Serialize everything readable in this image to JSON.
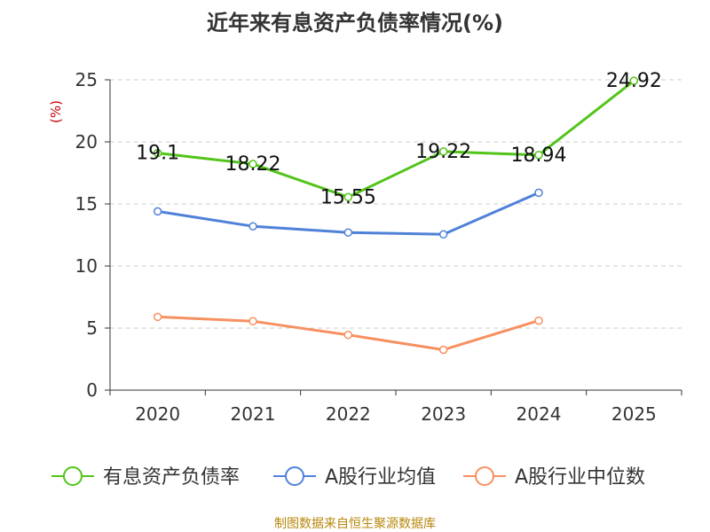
{
  "title": "近年来有息资产负债率情况(%)",
  "source": "制图数据来自恒生聚源数据库",
  "chart_data": {
    "type": "line",
    "categories": [
      "2020",
      "2021",
      "2022",
      "2023",
      "2024",
      "2025"
    ],
    "ylabel": "(%)",
    "ylim": [
      0,
      25
    ],
    "yticks": [
      0,
      5,
      10,
      15,
      20,
      25
    ],
    "grid": true,
    "legend_position": "bottom",
    "series": [
      {
        "name": "有息资产负债率",
        "color": "#52c41a",
        "values": [
          19.1,
          18.22,
          15.55,
          19.22,
          18.94,
          24.92
        ],
        "labels": [
          "19.1",
          "18.22",
          "15.55",
          "19.22",
          "18.94",
          "24.92"
        ]
      },
      {
        "name": "A股行业均值",
        "color": "#4f81d9",
        "values": [
          14.4,
          13.2,
          12.7,
          12.55,
          15.9,
          null
        ]
      },
      {
        "name": "A股行业中位数",
        "color": "#f79060",
        "values": [
          5.9,
          5.55,
          4.45,
          3.25,
          5.6,
          null
        ]
      }
    ]
  }
}
